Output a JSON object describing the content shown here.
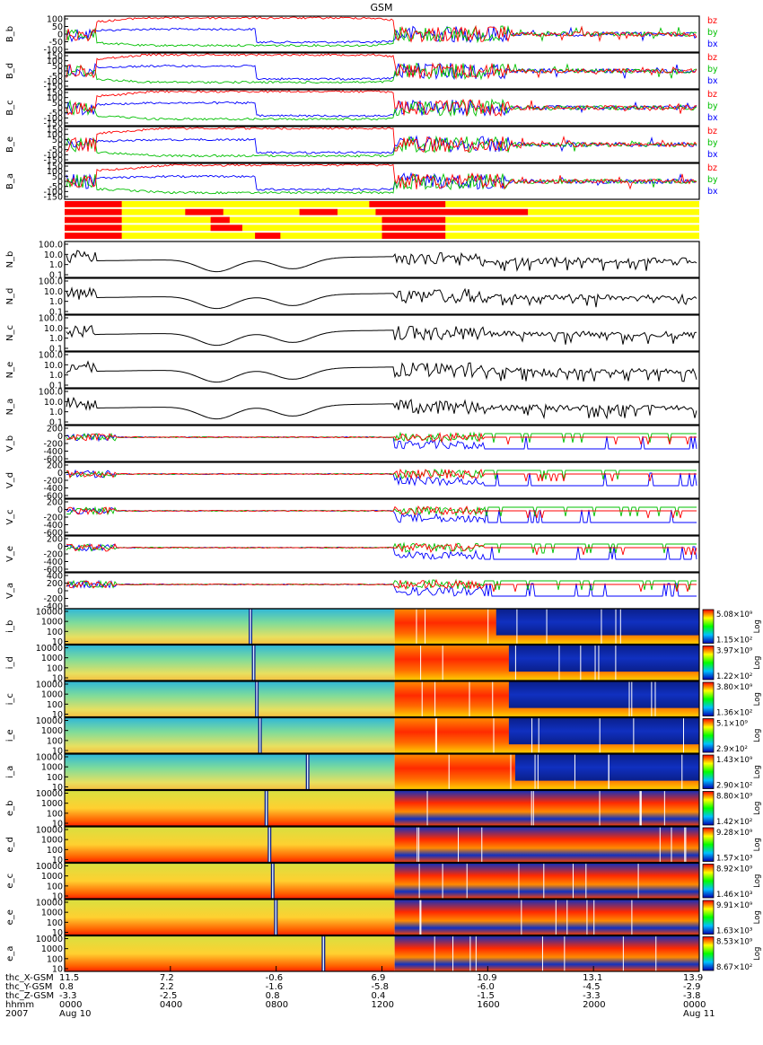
{
  "title": "GSM",
  "colors": {
    "bx": "#0000ff",
    "by": "#00c000",
    "bz": "#ff0000",
    "black": "#000000",
    "yellow": "#ffff00"
  },
  "chart_data": {
    "type": "timeseries-stack",
    "title": "GSM",
    "x_range": [
      "2007-08-10 00:00",
      "2007-08-11 00:00"
    ],
    "b_panels": [
      {
        "label": "B_b",
        "yticks": [
          "100",
          "50",
          "0",
          "-50",
          "-100"
        ],
        "legend": [
          "bz",
          "by",
          "bx"
        ]
      },
      {
        "label": "B_d",
        "yticks": [
          "150",
          "100",
          "50",
          "0",
          "-50",
          "-100",
          "-150"
        ],
        "legend": [
          "bz",
          "by",
          "bx"
        ]
      },
      {
        "label": "B_c",
        "yticks": [
          "150",
          "100",
          "50",
          "0",
          "-50",
          "-100",
          "-150"
        ],
        "legend": [
          "bz",
          "by",
          "bx"
        ]
      },
      {
        "label": "B_e",
        "yticks": [
          "150",
          "100",
          "50",
          "0",
          "-50",
          "-100",
          "-150"
        ],
        "legend": [
          "bz",
          "by",
          "bx"
        ]
      },
      {
        "label": "B_a",
        "yticks": [
          "150",
          "100",
          "50",
          "0",
          "-50",
          "-100",
          "-150"
        ],
        "legend": [
          "bz",
          "by",
          "bx"
        ]
      }
    ],
    "mode_bars": {
      "rows": 5,
      "red_segments": [
        [
          [
            0.0,
            0.09
          ],
          [
            0.48,
            0.6
          ]
        ],
        [
          [
            0.0,
            0.09
          ],
          [
            0.19,
            0.25
          ],
          [
            0.37,
            0.43
          ],
          [
            0.49,
            0.73
          ]
        ],
        [
          [
            0.0,
            0.09
          ],
          [
            0.23,
            0.26
          ],
          [
            0.5,
            0.6
          ]
        ],
        [
          [
            0.0,
            0.09
          ],
          [
            0.23,
            0.28
          ],
          [
            0.5,
            0.6
          ]
        ],
        [
          [
            0.0,
            0.09
          ],
          [
            0.3,
            0.34
          ],
          [
            0.5,
            0.6
          ]
        ]
      ]
    },
    "n_panels": [
      {
        "label": "N_b",
        "yticks": [
          "100.0",
          "10.0",
          "1.0",
          "0.1"
        ]
      },
      {
        "label": "N_d",
        "yticks": [
          "100.0",
          "10.0",
          "1.0",
          "0.1"
        ]
      },
      {
        "label": "N_c",
        "yticks": [
          "100.0",
          "10.0",
          "1.0",
          "0.1"
        ]
      },
      {
        "label": "N_e",
        "yticks": [
          "100.0",
          "10.0",
          "1.0",
          "0.1"
        ]
      },
      {
        "label": "N_a",
        "yticks": [
          "100.0",
          "10.0",
          "1.0",
          "0.1"
        ]
      }
    ],
    "v_panels": [
      {
        "label": "V_b",
        "yticks": [
          "200",
          "0",
          "-200",
          "-400",
          "-600"
        ]
      },
      {
        "label": "V_d",
        "yticks": [
          "200",
          "0",
          "-200",
          "-400",
          "-600"
        ]
      },
      {
        "label": "V_c",
        "yticks": [
          "200",
          "0",
          "-200",
          "-400",
          "-600"
        ]
      },
      {
        "label": "V_e",
        "yticks": [
          "200",
          "0",
          "-200",
          "-400",
          "-600"
        ]
      },
      {
        "label": "V_a",
        "yticks": [
          "400",
          "200",
          "0",
          "-200",
          "-400"
        ]
      }
    ],
    "spectrogram_panels": [
      {
        "label": "i_b",
        "yticks": [
          "10000",
          "1000",
          "100",
          "10"
        ],
        "cmax": "5.08×10⁹",
        "cmin": "1.15×10²",
        "scale": "Log"
      },
      {
        "label": "i_d",
        "yticks": [
          "10000",
          "1000",
          "100",
          "10"
        ],
        "cmax": "3.97×10⁹",
        "cmin": "1.22×10²",
        "scale": "Log"
      },
      {
        "label": "i_c",
        "yticks": [
          "10000",
          "1000",
          "100",
          "10"
        ],
        "cmax": "3.80×10⁹",
        "cmin": "1.36×10²",
        "scale": "Log"
      },
      {
        "label": "i_e",
        "yticks": [
          "10000",
          "1000",
          "100",
          "10"
        ],
        "cmax": "5.1×10⁹",
        "cmin": "2.9×10²",
        "scale": "Log"
      },
      {
        "label": "i_a",
        "yticks": [
          "10000",
          "1000",
          "100",
          "10"
        ],
        "cmax": "1.43×10⁹",
        "cmin": "2.90×10²",
        "scale": "Log"
      },
      {
        "label": "e_b",
        "yticks": [
          "10000",
          "1000",
          "100",
          "10"
        ],
        "cmax": "8.80×10⁹",
        "cmin": "1.42×10²",
        "scale": "Log"
      },
      {
        "label": "e_d",
        "yticks": [
          "10000",
          "1000",
          "100",
          "10"
        ],
        "cmax": "9.28×10⁹",
        "cmin": "1.57×10³",
        "scale": "Log"
      },
      {
        "label": "e_c",
        "yticks": [
          "10000",
          "1000",
          "100",
          "10"
        ],
        "cmax": "8.92×10⁹",
        "cmin": "1.46×10³",
        "scale": "Log"
      },
      {
        "label": "e_e",
        "yticks": [
          "10000",
          "1000",
          "100",
          "10"
        ],
        "cmax": "9.91×10⁹",
        "cmin": "1.63×10³",
        "scale": "Log"
      },
      {
        "label": "e_a",
        "yticks": [
          "10000",
          "1000",
          "100",
          "10"
        ],
        "cmax": "8.53×10⁹",
        "cmin": "8.67×10²",
        "scale": "Log"
      }
    ],
    "x_axis_rows": [
      {
        "label": "thc_X-GSM",
        "values": [
          "11.5",
          "7.2",
          "-0.6",
          "6.9",
          "10.9",
          "13.1",
          "13.9"
        ]
      },
      {
        "label": "thc_Y-GSM",
        "values": [
          "0.8",
          "2.2",
          "-1.6",
          "-5.8",
          "-6.0",
          "-4.5",
          "-2.9"
        ]
      },
      {
        "label": "thc_Z-GSM",
        "values": [
          "-3.3",
          "-2.5",
          "0.8",
          "0.4",
          "-1.5",
          "-3.3",
          "-3.8"
        ]
      },
      {
        "label": "hhmm",
        "values": [
          "0000",
          "0400",
          "0800",
          "1200",
          "1600",
          "2000",
          "0000"
        ]
      },
      {
        "label": "2007",
        "values": [
          "Aug 10",
          "",
          "",
          "",
          "",
          "",
          "Aug 11"
        ]
      }
    ]
  }
}
